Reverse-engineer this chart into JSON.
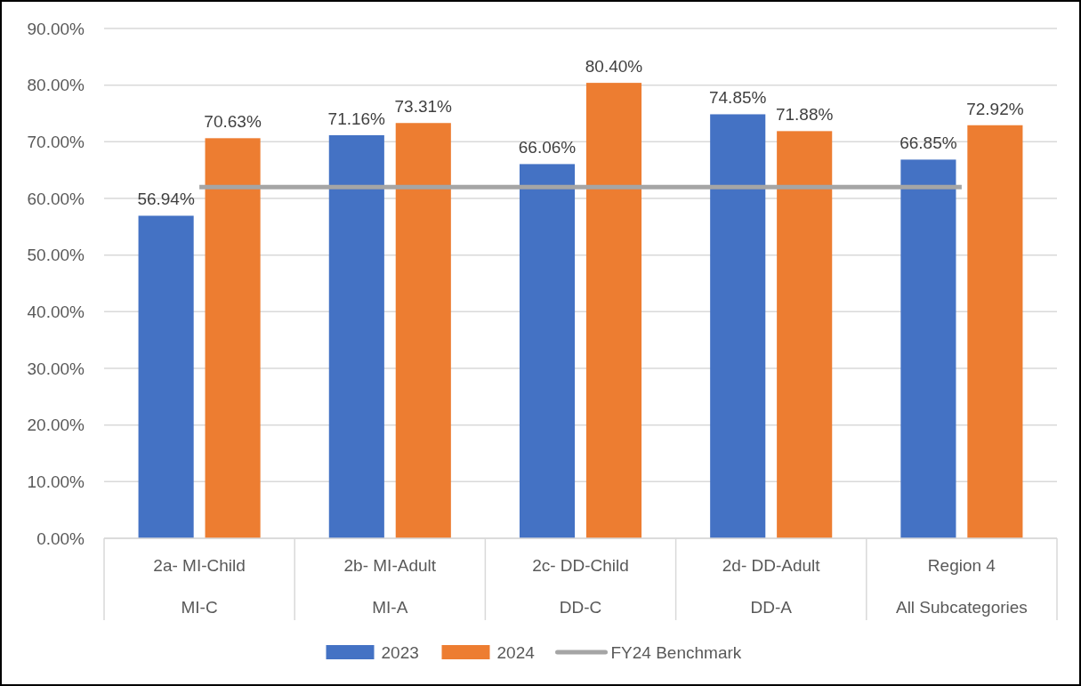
{
  "chart_data": {
    "type": "bar",
    "categories": [
      "2a- MI-Child\nMI-C",
      "2b- MI-Adult\nMI-A",
      "2c- DD-Child\nDD-C",
      "2d- DD-Adult\nDD-A",
      "Region 4\nAll Subcategories"
    ],
    "series": [
      {
        "name": "2023",
        "color": "#4472c4",
        "values": [
          56.94,
          71.16,
          66.06,
          74.85,
          66.85
        ],
        "value_labels": [
          "56.94%",
          "71.16%",
          "66.06%",
          "74.85%",
          "66.85%"
        ]
      },
      {
        "name": "2024",
        "color": "#ed7d31",
        "values": [
          70.63,
          73.31,
          80.4,
          71.88,
          72.92
        ],
        "value_labels": [
          "70.63%",
          "73.31%",
          "80.40%",
          "71.88%",
          "72.92%"
        ]
      },
      {
        "name": "FY24 Benchmark",
        "type": "line",
        "color": "#a5a5a5",
        "values": [
          62,
          62,
          62,
          62,
          62
        ]
      }
    ],
    "ylim": [
      0,
      90
    ],
    "yticks": [
      {
        "value": 0,
        "label": "0.00%"
      },
      {
        "value": 10,
        "label": "10.00%"
      },
      {
        "value": 20,
        "label": "20.00%"
      },
      {
        "value": 30,
        "label": "30.00%"
      },
      {
        "value": 40,
        "label": "40.00%"
      },
      {
        "value": 50,
        "label": "50.00%"
      },
      {
        "value": 60,
        "label": "60.00%"
      },
      {
        "value": 70,
        "label": "70.00%"
      },
      {
        "value": 80,
        "label": "80.00%"
      },
      {
        "value": 90,
        "label": "90.00%"
      }
    ],
    "grid": "y",
    "legend": "bottom",
    "marker": "none"
  }
}
